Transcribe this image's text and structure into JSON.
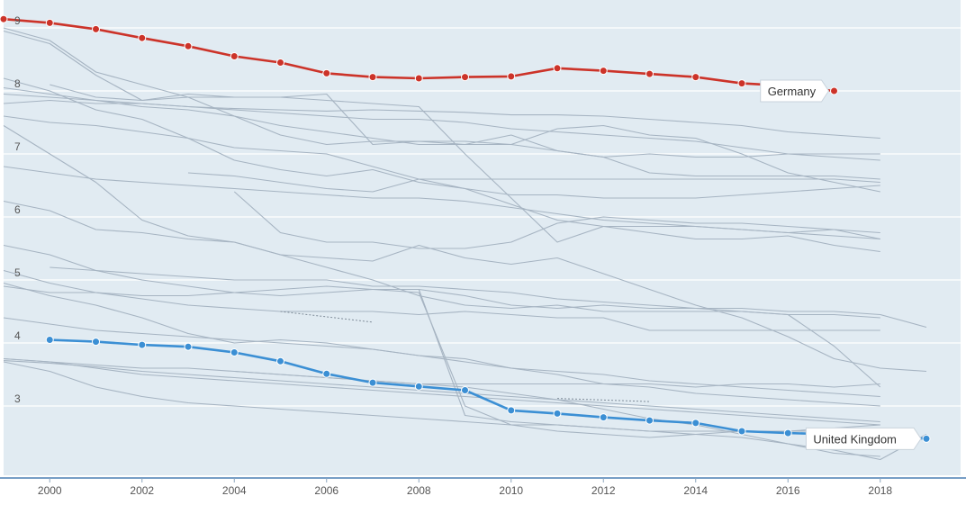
{
  "chart_data": {
    "type": "line",
    "title": "",
    "xlabel": "",
    "ylabel": "",
    "xlim": [
      1999,
      2019.5
    ],
    "ylim": [
      2.05,
      9.65
    ],
    "x_ticks": [
      2000,
      2002,
      2004,
      2006,
      2008,
      2010,
      2012,
      2014,
      2016,
      2018
    ],
    "y_ticks": [
      3,
      4,
      5,
      6,
      7,
      8,
      9
    ],
    "grid": "horizontal",
    "legend": "none",
    "colors": {
      "background": "#e1ebf2",
      "grid": "#ffffff",
      "baseline": "#4a7fb3",
      "background_series": "#a6b4c2",
      "Germany": "#cc3329",
      "United Kingdom": "#3b8fd4"
    },
    "highlighted": [
      {
        "name": "Germany",
        "x": [
          1999,
          2000,
          2001,
          2002,
          2003,
          2004,
          2005,
          2006,
          2007,
          2008,
          2009,
          2010,
          2011,
          2012,
          2013,
          2014,
          2015,
          2016,
          2017
        ],
        "values": [
          9.14,
          9.08,
          8.98,
          8.84,
          8.71,
          8.55,
          8.45,
          8.28,
          8.22,
          8.2,
          8.22,
          8.23,
          8.36,
          8.32,
          8.27,
          8.22,
          8.12,
          8.08,
          8.0
        ]
      },
      {
        "name": "United Kingdom",
        "x": [
          2000,
          2001,
          2002,
          2003,
          2004,
          2005,
          2006,
          2007,
          2008,
          2009,
          2010,
          2011,
          2012,
          2013,
          2014,
          2015,
          2016,
          2017,
          2018,
          2019
        ],
        "values": [
          4.05,
          4.02,
          3.97,
          3.94,
          3.85,
          3.71,
          3.51,
          3.37,
          3.31,
          3.25,
          2.93,
          2.88,
          2.82,
          2.77,
          2.73,
          2.6,
          2.57,
          2.55,
          2.53,
          2.48
        ]
      }
    ],
    "annotations": [
      {
        "series": "Germany",
        "text": "Germany"
      },
      {
        "series": "United Kingdom",
        "text": "United Kingdom"
      }
    ],
    "background_series": [
      {
        "x": [
          1999,
          2000,
          2001,
          2002,
          2003,
          2004,
          2005,
          2006,
          2007,
          2008,
          2009,
          2010,
          2011,
          2012,
          2013,
          2014,
          2015,
          2016,
          2017,
          2018
        ],
        "values": [
          9.0,
          8.8,
          8.3,
          8.1,
          7.9,
          7.6,
          7.3,
          7.15,
          7.2,
          7.2,
          7.2,
          7.15,
          7.4,
          7.45,
          7.3,
          7.25,
          7.0,
          6.7,
          6.55,
          6.4
        ]
      },
      {
        "x": [
          1999,
          2000,
          2001,
          2002,
          2003,
          2004,
          2005,
          2006,
          2007,
          2008,
          2009,
          2010,
          2011,
          2012,
          2013,
          2014,
          2015,
          2016,
          2017,
          2018
        ],
        "values": [
          8.95,
          8.75,
          8.25,
          7.85,
          7.9,
          7.9,
          7.9,
          7.95,
          7.15,
          7.2,
          7.15,
          7.3,
          7.05,
          6.95,
          6.7,
          6.65,
          6.65,
          6.65,
          6.65,
          6.6
        ]
      },
      {
        "x": [
          1999,
          2000,
          2001,
          2002,
          2003,
          2004,
          2005,
          2006,
          2007,
          2008,
          2009,
          2010,
          2011,
          2012,
          2013,
          2014,
          2015,
          2016,
          2017,
          2018
        ],
        "values": [
          8.2,
          8.0,
          7.7,
          7.55,
          7.25,
          6.9,
          6.75,
          6.65,
          6.75,
          6.55,
          6.45,
          6.2,
          5.95,
          5.85,
          5.75,
          5.65,
          5.65,
          5.7,
          5.55,
          5.45
        ]
      },
      {
        "x": [
          1999,
          2000,
          2001,
          2002,
          2003,
          2004,
          2005,
          2006,
          2007,
          2008,
          2009,
          2010,
          2011,
          2012,
          2013,
          2014,
          2015,
          2016,
          2017,
          2018
        ],
        "values": [
          8.05,
          7.95,
          7.85,
          7.75,
          7.7,
          7.6,
          7.45,
          7.35,
          7.25,
          7.15,
          7.15,
          7.15,
          7.05,
          6.95,
          7.0,
          6.95,
          6.95,
          7.0,
          7.0,
          7.0
        ]
      },
      {
        "x": [
          1999,
          2000,
          2001,
          2002,
          2003,
          2004,
          2005,
          2006,
          2007,
          2008,
          2009,
          2010,
          2011,
          2012,
          2013,
          2014,
          2015,
          2016,
          2017,
          2018
        ],
        "values": [
          7.95,
          7.9,
          7.85,
          7.8,
          7.75,
          7.7,
          7.65,
          7.6,
          7.55,
          7.55,
          7.5,
          7.4,
          7.35,
          7.3,
          7.25,
          7.2,
          7.1,
          7.0,
          6.95,
          6.9
        ]
      },
      {
        "x": [
          1999,
          2000,
          2001,
          2002,
          2003,
          2004,
          2005,
          2006,
          2007,
          2008,
          2009,
          2010,
          2011,
          2012,
          2013,
          2014,
          2015,
          2016,
          2017,
          2018
        ],
        "values": [
          7.8,
          7.85,
          7.8,
          7.8,
          7.75,
          7.72,
          7.7,
          7.68,
          7.7,
          7.68,
          7.66,
          7.62,
          7.62,
          7.6,
          7.55,
          7.5,
          7.45,
          7.35,
          7.3,
          7.25
        ]
      },
      {
        "x": [
          2000,
          2001,
          2002,
          2003,
          2004,
          2005,
          2006,
          2007,
          2008,
          2009,
          2010,
          2011,
          2012,
          2013,
          2014,
          2015,
          2016,
          2017,
          2018
        ],
        "values": [
          8.1,
          7.9,
          7.85,
          7.95,
          7.9,
          7.9,
          7.85,
          7.8,
          7.75,
          7.0,
          6.3,
          5.6,
          5.85,
          5.85,
          5.85,
          5.8,
          5.75,
          5.8,
          5.65
        ]
      },
      {
        "x": [
          1999,
          2000,
          2001,
          2002,
          2003,
          2004,
          2005,
          2006,
          2007,
          2008,
          2009,
          2010,
          2011,
          2012,
          2013,
          2014,
          2015,
          2016,
          2017,
          2018
        ],
        "values": [
          7.6,
          7.5,
          7.45,
          7.35,
          7.25,
          7.1,
          7.05,
          7.0,
          6.8,
          6.6,
          6.45,
          6.35,
          6.35,
          6.3,
          6.3,
          6.3,
          6.35,
          6.4,
          6.45,
          6.5
        ]
      },
      {
        "x": [
          1999,
          2000,
          2001,
          2002,
          2003,
          2004,
          2005,
          2006,
          2007,
          2008,
          2009,
          2010,
          2011,
          2012,
          2013,
          2014,
          2015,
          2016,
          2017,
          2018
        ],
        "values": [
          7.45,
          7.0,
          6.55,
          5.95,
          5.7,
          5.6,
          5.4,
          5.2,
          5.0,
          4.75,
          4.6,
          4.55,
          4.6,
          4.5,
          4.5,
          4.5,
          4.5,
          4.45,
          4.45,
          4.4
        ]
      },
      {
        "x": [
          1999,
          2000,
          2001,
          2002,
          2003,
          2004,
          2005,
          2006,
          2007,
          2008,
          2009,
          2010,
          2011,
          2012,
          2013,
          2014,
          2015,
          2016,
          2017,
          2018
        ],
        "values": [
          6.8,
          6.7,
          6.6,
          6.55,
          6.5,
          6.45,
          6.4,
          6.35,
          6.3,
          6.3,
          6.25,
          6.15,
          6.05,
          5.95,
          5.9,
          5.85,
          5.8,
          5.75,
          5.7,
          5.65
        ]
      },
      {
        "x": [
          2003,
          2004,
          2005,
          2006,
          2007,
          2008,
          2009,
          2010,
          2011,
          2012,
          2013,
          2014,
          2015,
          2016,
          2017,
          2018
        ],
        "values": [
          6.7,
          6.65,
          6.55,
          6.45,
          6.4,
          6.6,
          6.6,
          6.6,
          6.6,
          6.6,
          6.6,
          6.6,
          6.6,
          6.6,
          6.6,
          6.55
        ]
      },
      {
        "x": [
          2004,
          2005,
          2006,
          2007,
          2008,
          2009,
          2010,
          2011,
          2012,
          2013,
          2014,
          2015,
          2016,
          2017,
          2018
        ],
        "values": [
          6.4,
          5.75,
          5.6,
          5.6,
          5.5,
          5.5,
          5.6,
          5.9,
          6.0,
          5.95,
          5.9,
          5.9,
          5.85,
          5.8,
          5.75
        ]
      },
      {
        "x": [
          1999,
          2000,
          2001,
          2002,
          2003,
          2004,
          2005,
          2006,
          2007,
          2008,
          2009,
          2010,
          2011,
          2012,
          2013,
          2014,
          2015,
          2016,
          2017,
          2018,
          2019
        ],
        "values": [
          6.25,
          6.1,
          5.8,
          5.75,
          5.65,
          5.6,
          5.4,
          5.35,
          5.3,
          5.55,
          5.35,
          5.25,
          5.35,
          5.1,
          4.85,
          4.6,
          4.4,
          4.1,
          3.75,
          3.6,
          3.55
        ]
      },
      {
        "x": [
          1999,
          2000,
          2001,
          2002,
          2003,
          2004,
          2005,
          2006,
          2007,
          2008,
          2009,
          2010,
          2011,
          2012,
          2013,
          2014,
          2015,
          2016,
          2017,
          2018,
          2019
        ],
        "values": [
          5.55,
          5.4,
          5.15,
          5.0,
          4.9,
          4.8,
          4.75,
          4.8,
          4.85,
          4.85,
          4.75,
          4.6,
          4.55,
          4.6,
          4.55,
          4.55,
          4.55,
          4.5,
          4.5,
          4.45,
          4.25
        ]
      },
      {
        "x": [
          1999,
          2000,
          2001,
          2002,
          2003,
          2004,
          2005,
          2006,
          2007,
          2008,
          2009,
          2010,
          2011,
          2012,
          2013,
          2014,
          2015,
          2016,
          2017,
          2018
        ],
        "values": [
          5.15,
          4.95,
          4.8,
          4.7,
          4.6,
          4.55,
          4.5,
          4.5,
          4.5,
          4.45,
          4.5,
          4.45,
          4.4,
          4.4,
          4.2,
          4.2,
          4.2,
          4.2,
          4.2,
          4.2
        ]
      },
      {
        "x": [
          1999,
          2000,
          2001,
          2002,
          2003,
          2004,
          2005,
          2006,
          2007,
          2008,
          2009,
          2010,
          2011,
          2012,
          2013,
          2014,
          2015,
          2016,
          2017,
          2018
        ],
        "values": [
          4.95,
          4.75,
          4.6,
          4.4,
          4.15,
          4.0,
          4.05,
          4.0,
          3.9,
          3.8,
          3.7,
          3.6,
          3.5,
          3.35,
          3.3,
          3.2,
          3.15,
          3.1,
          3.05,
          3.0
        ]
      },
      {
        "x": [
          1999,
          2000,
          2001,
          2002,
          2003,
          2004,
          2005,
          2006,
          2007,
          2008,
          2009,
          2010,
          2011,
          2012,
          2013,
          2014,
          2015,
          2016,
          2017,
          2018
        ],
        "values": [
          4.4,
          4.3,
          4.2,
          4.15,
          4.1,
          4.05,
          4.0,
          3.95,
          3.9,
          3.8,
          3.75,
          3.6,
          3.55,
          3.5,
          3.4,
          3.35,
          3.3,
          3.25,
          3.2,
          3.15
        ]
      },
      {
        "x": [
          1999,
          2000,
          2001,
          2002,
          2003,
          2004,
          2005,
          2006,
          2007,
          2008,
          2009,
          2010,
          2011,
          2012,
          2013,
          2014,
          2015,
          2016,
          2017,
          2018
        ],
        "values": [
          3.75,
          3.7,
          3.65,
          3.6,
          3.6,
          3.55,
          3.5,
          3.45,
          3.4,
          3.35,
          3.35,
          3.35,
          3.35,
          3.35,
          3.35,
          3.3,
          3.35,
          3.35,
          3.3,
          3.35
        ]
      },
      {
        "x": [
          1999,
          2000,
          2001,
          2002,
          2003,
          2004,
          2005,
          2006,
          2007,
          2008,
          2009,
          2010,
          2011,
          2012,
          2013,
          2014,
          2015,
          2016,
          2017,
          2018
        ],
        "values": [
          3.7,
          3.55,
          3.3,
          3.15,
          3.05,
          3.0,
          2.95,
          2.9,
          2.85,
          2.8,
          2.75,
          2.7,
          2.7,
          2.65,
          2.6,
          2.6,
          2.6,
          2.6,
          2.6,
          2.6
        ]
      },
      {
        "x": [
          1999,
          2000,
          2001,
          2002,
          2003,
          2004,
          2005,
          2006,
          2007,
          2008,
          2009,
          2010,
          2011,
          2012,
          2013,
          2014,
          2015,
          2016,
          2017,
          2018
        ],
        "values": [
          3.72,
          3.68,
          3.62,
          3.55,
          3.5,
          3.45,
          3.4,
          3.35,
          3.3,
          3.25,
          3.2,
          3.15,
          3.1,
          3.05,
          3.0,
          2.95,
          2.9,
          2.85,
          2.8,
          2.75
        ]
      },
      {
        "x": [
          1999,
          2000,
          2001,
          2002,
          2003,
          2004,
          2005,
          2006,
          2007,
          2008,
          2009,
          2010,
          2011,
          2012,
          2013,
          2014,
          2015,
          2016,
          2017,
          2018
        ],
        "values": [
          3.75,
          3.7,
          3.6,
          3.5,
          3.45,
          3.4,
          3.35,
          3.3,
          3.25,
          3.2,
          3.15,
          3.1,
          3.05,
          3.0,
          2.95,
          2.9,
          2.85,
          2.8,
          2.75,
          2.7
        ]
      },
      {
        "x": [
          2000,
          2001,
          2002,
          2003,
          2004,
          2005,
          2006,
          2007,
          2008,
          2009,
          2010,
          2011,
          2012,
          2013,
          2014,
          2015,
          2016,
          2017,
          2018
        ],
        "values": [
          5.2,
          5.15,
          5.1,
          5.05,
          5.0,
          5.0,
          5.0,
          4.9,
          4.9,
          4.85,
          4.8,
          4.7,
          4.65,
          4.6,
          4.55,
          4.5,
          4.45,
          3.95,
          3.3
        ]
      },
      {
        "x": [
          1999,
          2000,
          2001,
          2002,
          2003,
          2004,
          2005,
          2006,
          2007,
          2008,
          2009,
          2010,
          2011,
          2012,
          2013,
          2014,
          2015,
          2016,
          2017,
          2018
        ],
        "values": [
          4.9,
          4.8,
          4.8,
          4.75,
          4.75,
          4.8,
          4.85,
          4.9,
          4.85,
          4.8,
          3.0,
          2.7,
          2.6,
          2.55,
          2.5,
          2.55,
          2.6,
          2.6,
          2.65,
          2.7
        ]
      },
      {
        "x": [
          2004,
          2005,
          2006,
          2007,
          2008,
          2009,
          2010,
          2011,
          2012,
          2013,
          2014,
          2015,
          2016,
          2017,
          2018,
          2019
        ],
        "values": [
          3.55,
          3.5,
          3.45,
          3.4,
          3.35,
          3.3,
          3.2,
          3.1,
          2.95,
          2.8,
          2.7,
          2.55,
          2.4,
          2.3,
          2.15,
          2.55
        ]
      },
      {
        "x": [
          2008,
          2009,
          2010,
          2011,
          2012,
          2013,
          2014,
          2015,
          2016,
          2017,
          2018
        ],
        "values": [
          4.85,
          2.85,
          2.75,
          2.7,
          2.65,
          2.6,
          2.55,
          2.5,
          2.4,
          2.25,
          2.2
        ]
      }
    ],
    "dotted_segments": [
      {
        "x": [
          2005,
          2007
        ],
        "values": [
          4.5,
          4.33
        ]
      },
      {
        "x": [
          2011,
          2013
        ],
        "values": [
          3.12,
          3.07
        ]
      }
    ]
  }
}
